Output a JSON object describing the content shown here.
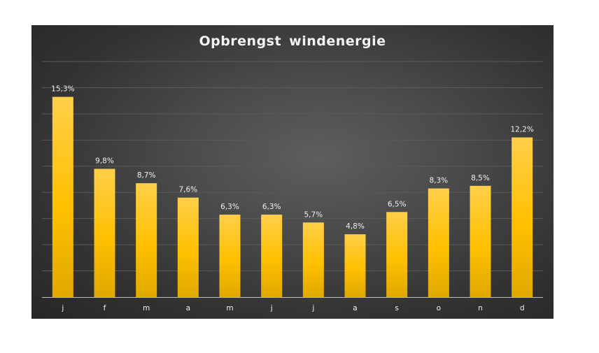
{
  "chart_data": {
    "type": "bar",
    "title": "Opbrengst  windenergie",
    "categories": [
      "j",
      "f",
      "m",
      "a",
      "m",
      "j",
      "j",
      "a",
      "s",
      "o",
      "n",
      "d"
    ],
    "values": [
      15.3,
      9.8,
      8.7,
      7.6,
      6.3,
      6.3,
      5.7,
      4.8,
      6.5,
      8.3,
      8.5,
      12.2
    ],
    "data_labels": [
      "15,3%",
      "9,8%",
      "8,7%",
      "7,6%",
      "6,3%",
      "6,3%",
      "5,7%",
      "4,8%",
      "6,5%",
      "8,3%",
      "8,5%",
      "12,2%"
    ],
    "xlabel": "",
    "ylabel": "",
    "ylim": [
      0,
      18
    ],
    "y_axis_visible": false,
    "grid": true,
    "legend": "none",
    "colors": {
      "bar_top": "#ffcf4a",
      "bar_mid": "#ffc000",
      "bar_bottom": "#e0a800",
      "background": "#3c3c3c",
      "gridline": "#5a5a5a",
      "axis": "#bfbfbf",
      "text": "#f0f0f0"
    }
  }
}
